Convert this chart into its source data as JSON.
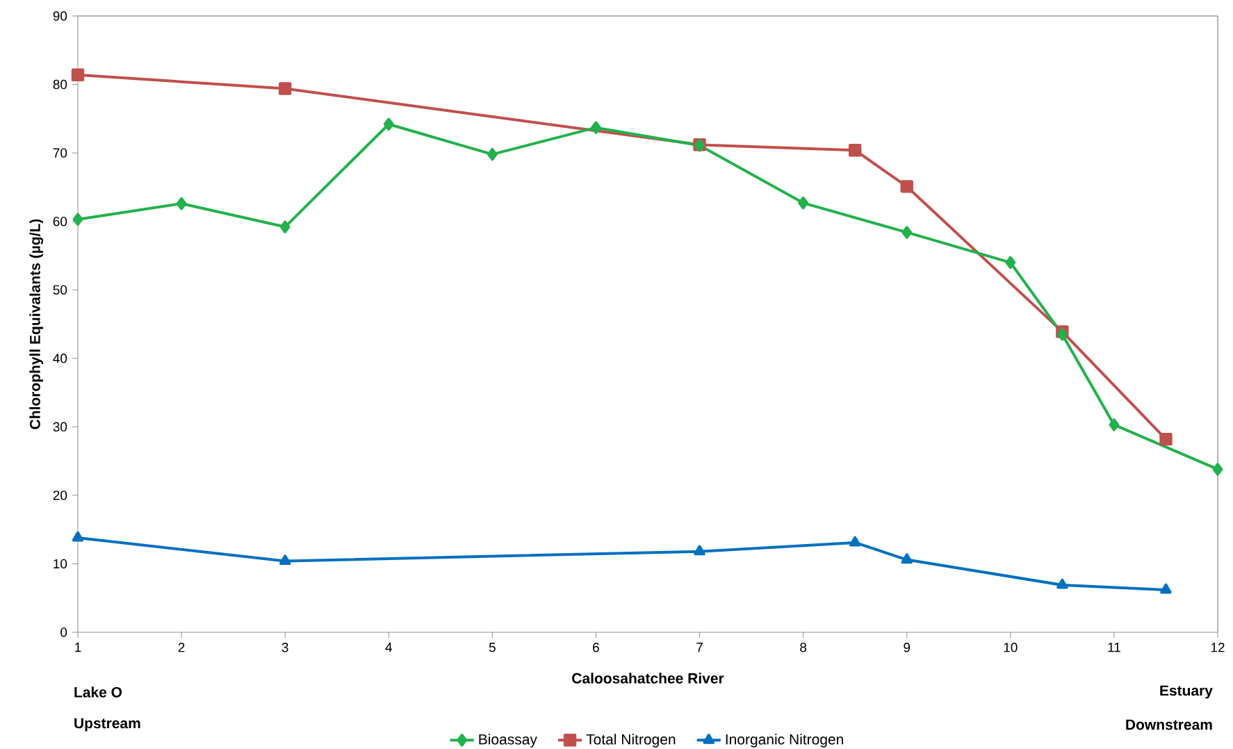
{
  "chart_data": {
    "type": "line",
    "ylabel": "Chlorophyll Equivalants (µg/L)",
    "xlabel": "Caloosahatchee River",
    "xlim": [
      1,
      12
    ],
    "xticks": [
      1,
      2,
      3,
      4,
      5,
      6,
      7,
      8,
      9,
      10,
      11,
      12
    ],
    "ylim": [
      0,
      90
    ],
    "yticks": [
      0,
      10,
      20,
      30,
      40,
      50,
      60,
      70,
      80,
      90
    ],
    "legend": "bottom",
    "annotations": [
      "Lake O",
      "Upstream",
      "Estuary",
      "Downstream"
    ],
    "series": [
      {
        "name": "Bioassay",
        "color": "#22b14c",
        "marker": "diamond",
        "x": [
          1,
          2,
          3,
          4,
          5,
          6,
          7,
          8,
          9,
          10,
          10.5,
          11,
          12
        ],
        "values": [
          60.3,
          62.6,
          59.2,
          74.2,
          69.8,
          73.7,
          71.1,
          62.7,
          58.4,
          54.0,
          43.5,
          30.3,
          23.8
        ]
      },
      {
        "name": "Total Nitrogen",
        "color": "#c0504d",
        "marker": "square",
        "x": [
          1,
          3,
          7,
          8.5,
          9,
          10.5,
          11.5
        ],
        "values": [
          81.4,
          79.4,
          71.2,
          70.4,
          65.1,
          43.9,
          28.2
        ]
      },
      {
        "name": "Inorganic Nitrogen",
        "color": "#0070c0",
        "marker": "triangle",
        "x": [
          1,
          3,
          7,
          8.5,
          9,
          10.5,
          11.5
        ],
        "values": [
          13.8,
          10.4,
          11.8,
          13.1,
          10.6,
          6.9,
          6.2
        ]
      }
    ]
  }
}
